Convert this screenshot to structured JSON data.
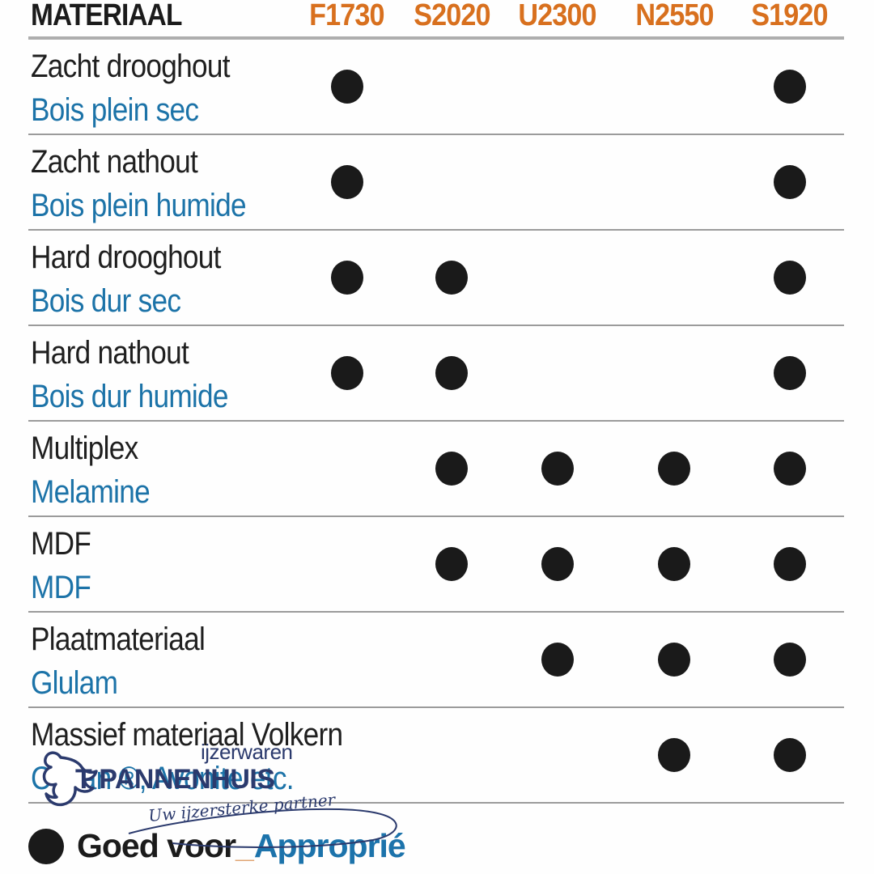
{
  "chart_data": {
    "type": "table",
    "title": "MATERIAAL",
    "columns": [
      "F1730",
      "S2020",
      "U2300",
      "N2550",
      "S1920"
    ],
    "rows": [
      {
        "material_nl": "Zacht drooghout",
        "material_fr": "Bois plein sec",
        "F1730": true,
        "S2020": false,
        "U2300": false,
        "N2550": false,
        "S1920": true
      },
      {
        "material_nl": "Zacht nathout",
        "material_fr": "Bois plein humide",
        "F1730": true,
        "S2020": false,
        "U2300": false,
        "N2550": false,
        "S1920": true
      },
      {
        "material_nl": "Hard drooghout",
        "material_fr": "Bois dur sec",
        "F1730": true,
        "S2020": true,
        "U2300": false,
        "N2550": false,
        "S1920": true
      },
      {
        "material_nl": "Hard nathout",
        "material_fr": "Bois dur humide",
        "F1730": true,
        "S2020": true,
        "U2300": false,
        "N2550": false,
        "S1920": true
      },
      {
        "material_nl": "Multiplex",
        "material_fr": "Melamine",
        "F1730": false,
        "S2020": true,
        "U2300": true,
        "N2550": true,
        "S1920": true
      },
      {
        "material_nl": "MDF",
        "material_fr": "MDF",
        "F1730": false,
        "S2020": true,
        "U2300": true,
        "N2550": true,
        "S1920": true
      },
      {
        "material_nl": "Plaatmateriaal",
        "material_fr": "Glulam",
        "F1730": false,
        "S2020": false,
        "U2300": true,
        "N2550": true,
        "S1920": true
      },
      {
        "material_nl": "Massief materiaal Volkern",
        "material_fr": "Corian ®, Avonite etc.",
        "F1730": false,
        "S2020": false,
        "U2300": false,
        "N2550": true,
        "S1920": true
      }
    ],
    "legend": {
      "nl": "Goed voor",
      "separator": "_",
      "fr": "Approprié"
    },
    "layout": "dot matrix table; dot = material suitable for blade model"
  },
  "legend": {
    "nl": "Goed voor",
    "separator": "_",
    "fr": "Approprié"
  },
  "watermark": {
    "top": "ijzerwaren",
    "name": "T PANNENHUIS",
    "tagline": "Uw ijzersterke partner"
  },
  "colors": {
    "code_orange": "#d8701e",
    "french_blue": "#1c73a8",
    "watermark_navy": "#2b3a6d",
    "text_black": "#1b1b1b",
    "row_line_gray": "#9b9b9b",
    "header_line_gray": "#aeaeae",
    "underscore_orange": "#e0a573"
  }
}
